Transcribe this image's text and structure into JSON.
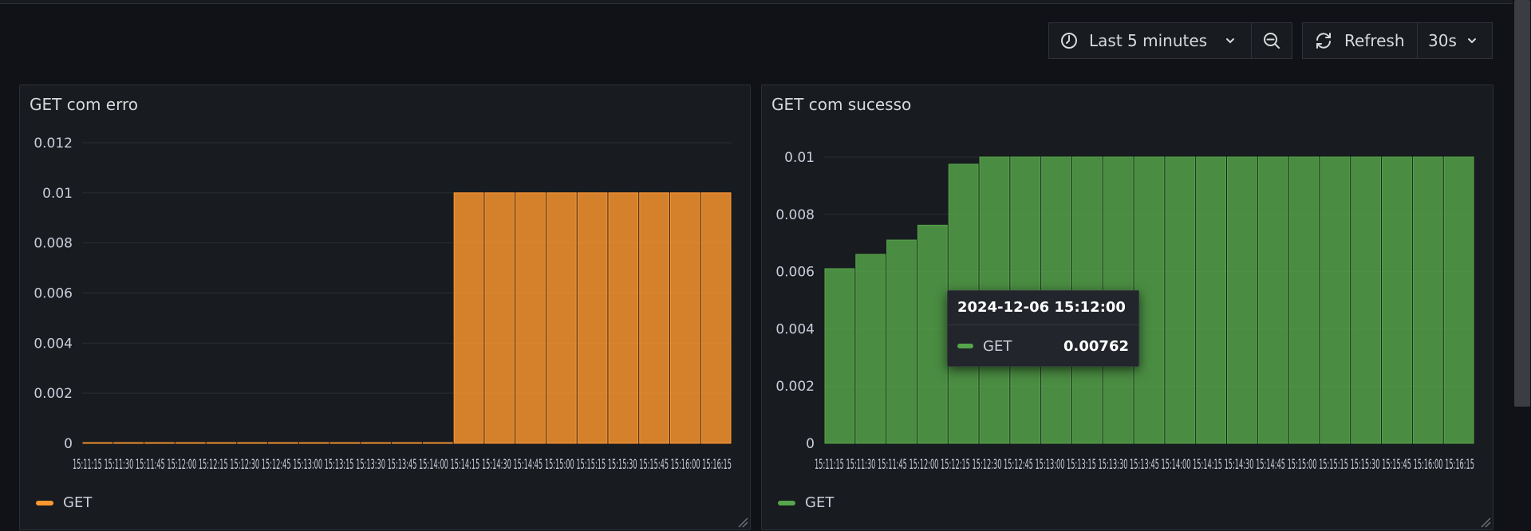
{
  "toolbar": {
    "time_range_label": "Last 5 minutes",
    "refresh_label": "Refresh",
    "interval_label": "30s"
  },
  "panels": [
    {
      "title": "GET com erro",
      "legend_label": "GET",
      "color": "#ff9830"
    },
    {
      "title": "GET com sucesso",
      "legend_label": "GET",
      "color": "#56a64b"
    }
  ],
  "tooltip": {
    "time": "2024-12-06 15:12:00",
    "series": "GET",
    "value": "0.00762"
  },
  "chart_data": [
    {
      "type": "bar",
      "title": "GET com erro",
      "xlabel": "",
      "ylabel": "",
      "ylim": [
        0,
        0.012
      ],
      "yticks": [
        "0",
        "0.002",
        "0.004",
        "0.006",
        "0.008",
        "0.01",
        "0.012"
      ],
      "x_tick_text": "15:11:15  15:11:30  15:11:45  15:12:00  15:12:15  15:12:30  15:12:45  15:13:00  15:13:15  15:13:30  15:13:45  15:14:00  15:14:15  15:14:30  15:14:45  15:15:00  15:15:15  15:15:30  15:15:45  15:16:00  15:16:15",
      "legend_placement": "bottom-left",
      "series": [
        {
          "name": "GET",
          "color": "#ff9830",
          "values": [
            0,
            0,
            0,
            0,
            0,
            0,
            0,
            0,
            0,
            0,
            0,
            0,
            0.01,
            0.01,
            0.01,
            0.01,
            0.01,
            0.01,
            0.01,
            0.01,
            0.01
          ]
        }
      ]
    },
    {
      "type": "bar",
      "title": "GET com sucesso",
      "xlabel": "",
      "ylabel": "",
      "ylim": [
        0,
        0.0105
      ],
      "yticks": [
        "0",
        "0.002",
        "0.004",
        "0.006",
        "0.008",
        "0.01"
      ],
      "x_tick_text": "15:11:15  15:11:30  15:11:45  15:12:00  15:12:15  15:12:30  15:12:45  15:13:00  15:13:15  15:13:30  15:13:45  15:14:00  15:14:15  15:14:30  15:14:45  15:15:00  15:15:15  15:15:30  15:15:45  15:16:00  15:16:15",
      "legend_placement": "bottom-left",
      "series": [
        {
          "name": "GET",
          "color": "#56a64b",
          "values": [
            0.0061,
            0.0066,
            0.0071,
            0.00762,
            0.00975,
            0.01,
            0.01,
            0.01,
            0.01,
            0.01,
            0.01,
            0.01,
            0.01,
            0.01,
            0.01,
            0.01,
            0.01,
            0.01,
            0.01,
            0.01,
            0.01
          ]
        }
      ]
    }
  ]
}
